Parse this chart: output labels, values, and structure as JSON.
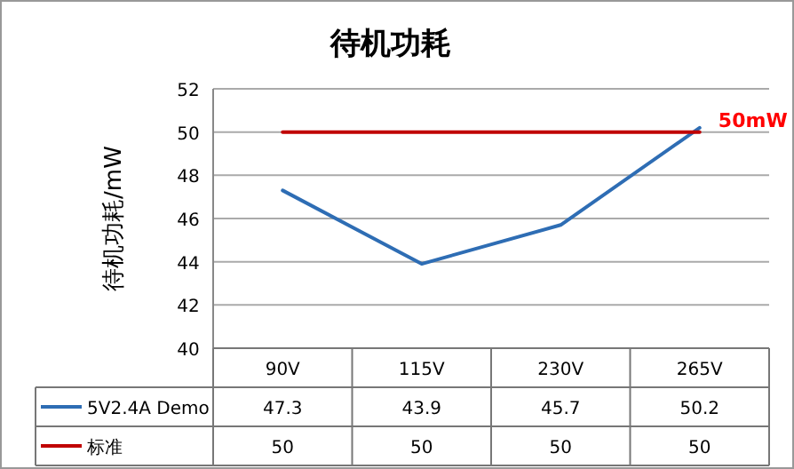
{
  "chart_data": {
    "type": "line",
    "title": "待机功耗",
    "ylabel": "待机功耗/mW",
    "categories": [
      "90V",
      "115V",
      "230V",
      "265V"
    ],
    "series": [
      {
        "name": "5V2.4A Demo",
        "color": "#2e6db4",
        "values": [
          47.3,
          43.9,
          45.7,
          50.2
        ]
      },
      {
        "name": "标准",
        "color": "#c00000",
        "values": [
          50,
          50,
          50,
          50
        ]
      }
    ],
    "ylim": [
      40,
      52
    ],
    "yticks": [
      40,
      42,
      44,
      46,
      48,
      50,
      52
    ],
    "grid": "y",
    "data_labels": true,
    "legend": "bottom",
    "annotations": [
      {
        "text": "50mW",
        "x": "265V",
        "y": 50
      }
    ]
  }
}
